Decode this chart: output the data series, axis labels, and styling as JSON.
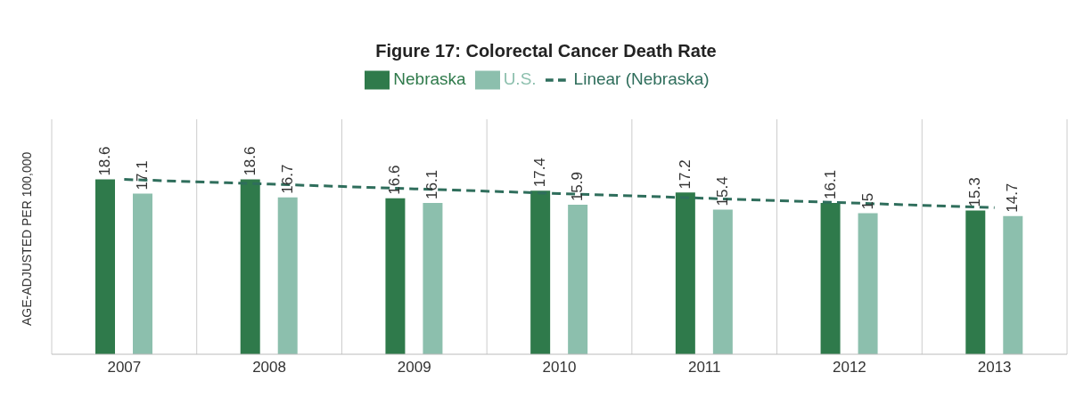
{
  "chart_data": {
    "type": "bar",
    "title": "Figure 17: Colorectal Cancer Death Rate",
    "ylabel": "AGE-ADJUSTED PER 100,000",
    "categories": [
      "2007",
      "2008",
      "2009",
      "2010",
      "2011",
      "2012",
      "2013"
    ],
    "series": [
      {
        "name": "Nebraska",
        "color": "#2f7a4b",
        "values": [
          18.6,
          18.6,
          16.6,
          17.4,
          17.2,
          16.1,
          15.3
        ],
        "value_labels": [
          "18.6",
          "18.6",
          "16.6",
          "17.4",
          "17.2",
          "16.1",
          "15.3"
        ]
      },
      {
        "name": "U.S.",
        "color": "#8cbfad",
        "values": [
          17.1,
          16.7,
          16.1,
          15.9,
          15.4,
          15,
          14.7
        ],
        "value_labels": [
          "17.1",
          "16.7",
          "16.1",
          "15.9",
          "15.4",
          "15",
          "14.7"
        ]
      },
      {
        "name": "Linear (Nebraska)",
        "type": "line",
        "line_style": "dashed",
        "color": "#2f6e5c",
        "values": [
          18.6,
          18.1,
          17.6,
          17.1,
          16.6,
          16.1,
          15.6
        ]
      }
    ],
    "ylim": [
      0,
      25
    ],
    "tick_labels": "x",
    "grid": "x",
    "legend": "top",
    "marker": "none"
  }
}
